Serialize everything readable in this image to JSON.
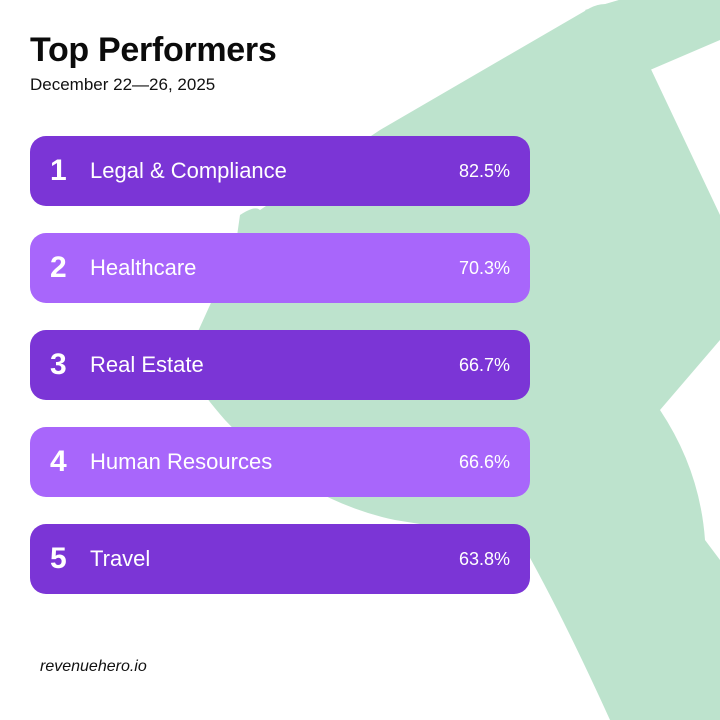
{
  "header": {
    "title": "Top Performers",
    "date_range": "December 22—26, 2025"
  },
  "performers": [
    {
      "rank": "1",
      "name": "Legal & Compliance",
      "percent": "82.5%"
    },
    {
      "rank": "2",
      "name": "Healthcare",
      "percent": "70.3%"
    },
    {
      "rank": "3",
      "name": "Real Estate",
      "percent": "66.7%"
    },
    {
      "rank": "4",
      "name": "Human Resources",
      "percent": "66.6%"
    },
    {
      "rank": "5",
      "name": "Travel",
      "percent": "63.8%"
    }
  ],
  "footer": {
    "brand": "revenuehero.io"
  },
  "colors": {
    "row_dark": "#7b35d6",
    "row_light": "#a866fb",
    "trophy_art": "#bde3cd"
  },
  "icons": {
    "background": "trophy-icon"
  }
}
